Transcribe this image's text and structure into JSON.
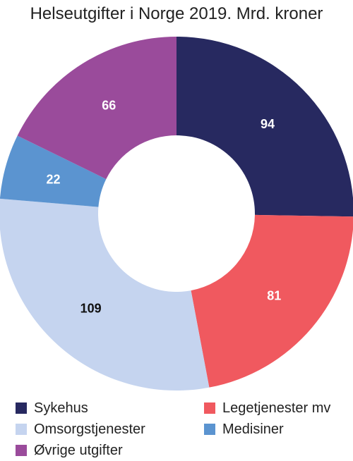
{
  "chart_data": {
    "type": "pie",
    "donut": true,
    "title": "Helseutgifter i Norge 2019. Mrd. kroner",
    "categories": [
      "Sykehus",
      "Legetjenester mv",
      "Omsorgstjenester",
      "Medisiner",
      "Øvrige utgifter"
    ],
    "values": [
      94,
      81,
      109,
      22,
      66
    ],
    "colors": [
      "#272960",
      "#f0595f",
      "#c5d4ef",
      "#5b94d0",
      "#9a4b9b"
    ],
    "label_colors": [
      "#ffffff",
      "#ffffff",
      "#111111",
      "#ffffff",
      "#ffffff"
    ],
    "legend_position": "bottom"
  }
}
